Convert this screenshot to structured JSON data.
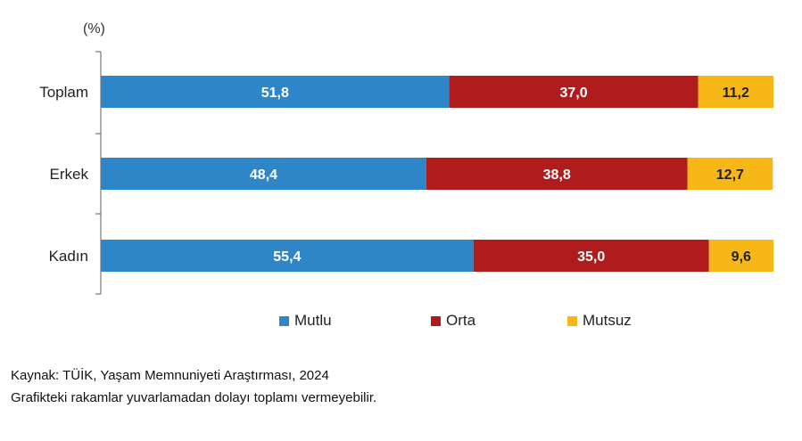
{
  "unit_label": "(%)",
  "chart_data": {
    "type": "bar",
    "orientation": "horizontal",
    "stacked": true,
    "categories": [
      "Toplam",
      "Erkek",
      "Kadın"
    ],
    "series": [
      {
        "name": "Mutlu",
        "values": [
          51.8,
          48.4,
          55.4
        ],
        "labels": [
          "51,8",
          "48,4",
          "55,4"
        ],
        "color": "#2e86c9"
      },
      {
        "name": "Orta",
        "values": [
          37.0,
          38.8,
          35.0
        ],
        "labels": [
          "37,0",
          "38,8",
          "35,0"
        ],
        "color": "#b01c1c"
      },
      {
        "name": "Mutsuz",
        "values": [
          11.2,
          12.7,
          9.6
        ],
        "labels": [
          "11,2",
          "12,7",
          "9,6"
        ],
        "color": "#f7b717"
      }
    ],
    "xlim": [
      0,
      100
    ],
    "grid": false,
    "legend_position": "bottom"
  },
  "footer": {
    "source": "Kaynak: TÜİK, Yaşam Memnuniyeti Araştırması, 2024",
    "note": "Grafikteki rakamlar yuvarlamadan dolayı toplamı vermeyebilir."
  }
}
